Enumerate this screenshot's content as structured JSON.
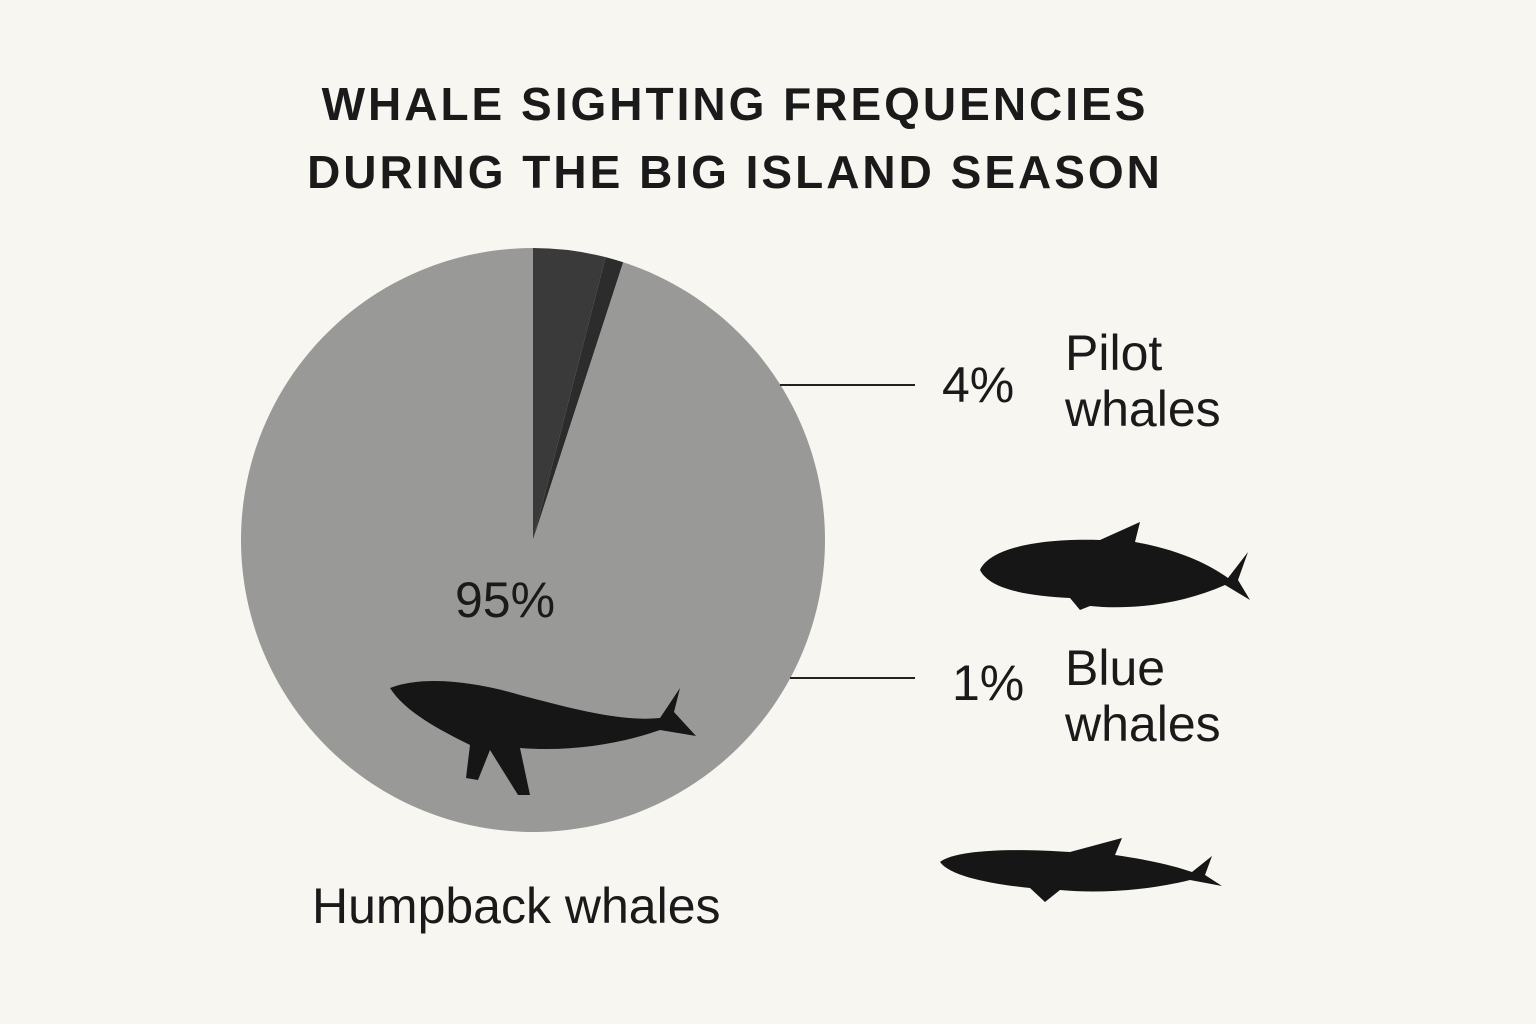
{
  "chart_data": {
    "type": "pie",
    "title": "WHALE SIGHTING FREQUENCIES DURING THE BIG ISLAND SEASON",
    "categories": [
      "Humpback whales",
      "Pilot whales",
      "Blue whales"
    ],
    "values": [
      95,
      4,
      1
    ],
    "value_labels": [
      "95%",
      "4%",
      "1%"
    ],
    "colors": [
      "#999997",
      "#3a3a3a",
      "#2c2c2c"
    ]
  }
}
